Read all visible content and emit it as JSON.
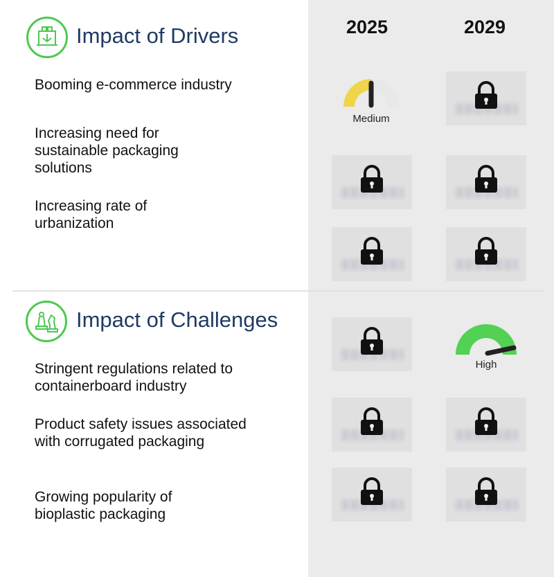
{
  "columns": [
    "2025",
    "2029"
  ],
  "sections": [
    {
      "title": "Impact of Drivers",
      "icon": "factory-icon",
      "items": [
        {
          "label": "Booming e-commerce industry",
          "y2025": "Medium",
          "y2029": "locked"
        },
        {
          "label": "Increasing need for sustainable packaging solutions",
          "y2025": "locked",
          "y2029": "locked"
        },
        {
          "label": "Increasing rate of urbanization",
          "y2025": "locked",
          "y2029": "locked"
        }
      ]
    },
    {
      "title": "Impact of Challenges",
      "icon": "chess-pieces-icon",
      "items": [
        {
          "label": "Stringent regulations related to containerboard industry",
          "y2025": "locked",
          "y2029": "High"
        },
        {
          "label": "Product safety issues associated with corrugated packaging",
          "y2025": "locked",
          "y2029": "locked"
        },
        {
          "label": "Growing popularity of bioplastic packaging",
          "y2025": "locked",
          "y2029": "locked"
        }
      ]
    }
  ],
  "colors": {
    "accent_green": "#4cc94f",
    "gauge_medium": "#f0d44a",
    "gauge_high": "#53d152",
    "title_blue": "#1f3a63",
    "panel_gray": "#ebebeb"
  }
}
